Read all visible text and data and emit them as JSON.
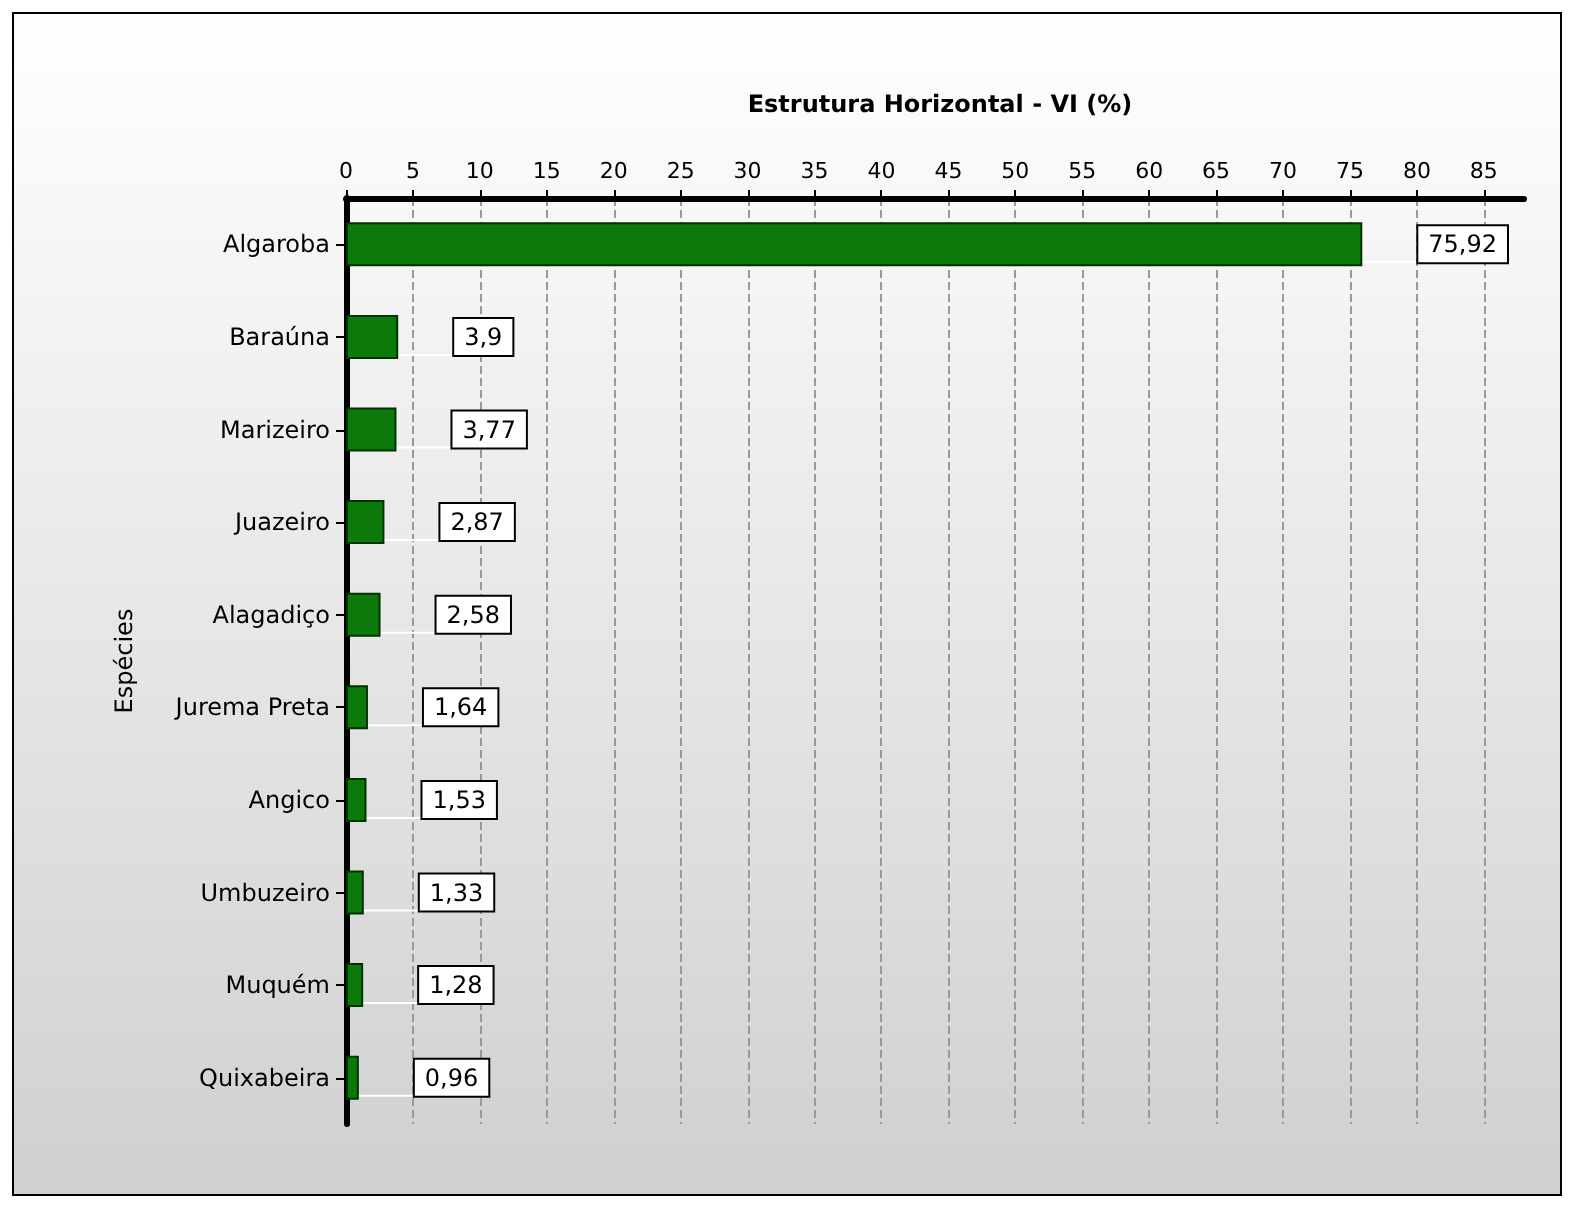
{
  "chart_data": {
    "type": "bar",
    "orientation": "horizontal",
    "title": "Estrutura Horizontal - VI (%)",
    "ylabel": "Espécies",
    "categories": [
      "Algaroba",
      "Baraúna",
      "Marizeiro",
      "Juazeiro",
      "Alagadiço",
      "Jurema Preta",
      "Angico",
      "Umbuzeiro",
      "Muquém",
      "Quixabeira"
    ],
    "values": [
      75.92,
      3.9,
      3.77,
      2.87,
      2.58,
      1.64,
      1.53,
      1.33,
      1.28,
      0.96
    ],
    "value_labels": [
      "75,92",
      "3,9",
      "3,77",
      "2,87",
      "2,58",
      "1,64",
      "1,53",
      "1,33",
      "1,28",
      "0,96"
    ],
    "color": "#0b7a0b",
    "xlim": [
      0,
      88
    ],
    "xticks": [
      0,
      5,
      10,
      15,
      20,
      25,
      30,
      35,
      40,
      45,
      50,
      55,
      60,
      65,
      70,
      75,
      80,
      85
    ],
    "grid": "x"
  }
}
